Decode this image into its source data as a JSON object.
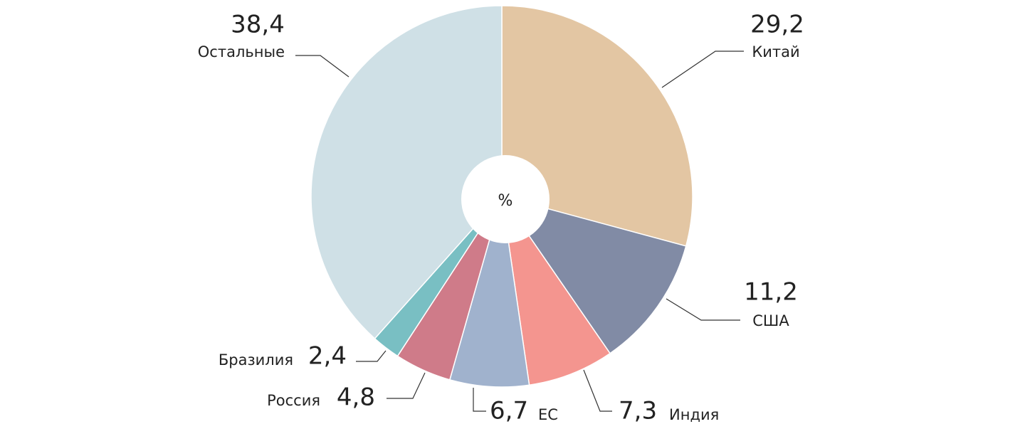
{
  "chart_data": {
    "type": "donut",
    "center_label": "%",
    "categories": [
      "Китай",
      "США",
      "Индия",
      "ЕС",
      "Россия",
      "Бразилия",
      "Остальные"
    ],
    "values": [
      29.2,
      11.2,
      7.3,
      6.7,
      4.8,
      2.4,
      38.4
    ],
    "value_labels": [
      "29,2",
      "11,2",
      "7,3",
      "6,7",
      "4,8",
      "2,4",
      "38,4"
    ],
    "colors": [
      "#e3c6a3",
      "#818ba5",
      "#f4958f",
      "#a0b2cd",
      "#cf7b89",
      "#79bfc3",
      "#cfe0e6"
    ]
  }
}
